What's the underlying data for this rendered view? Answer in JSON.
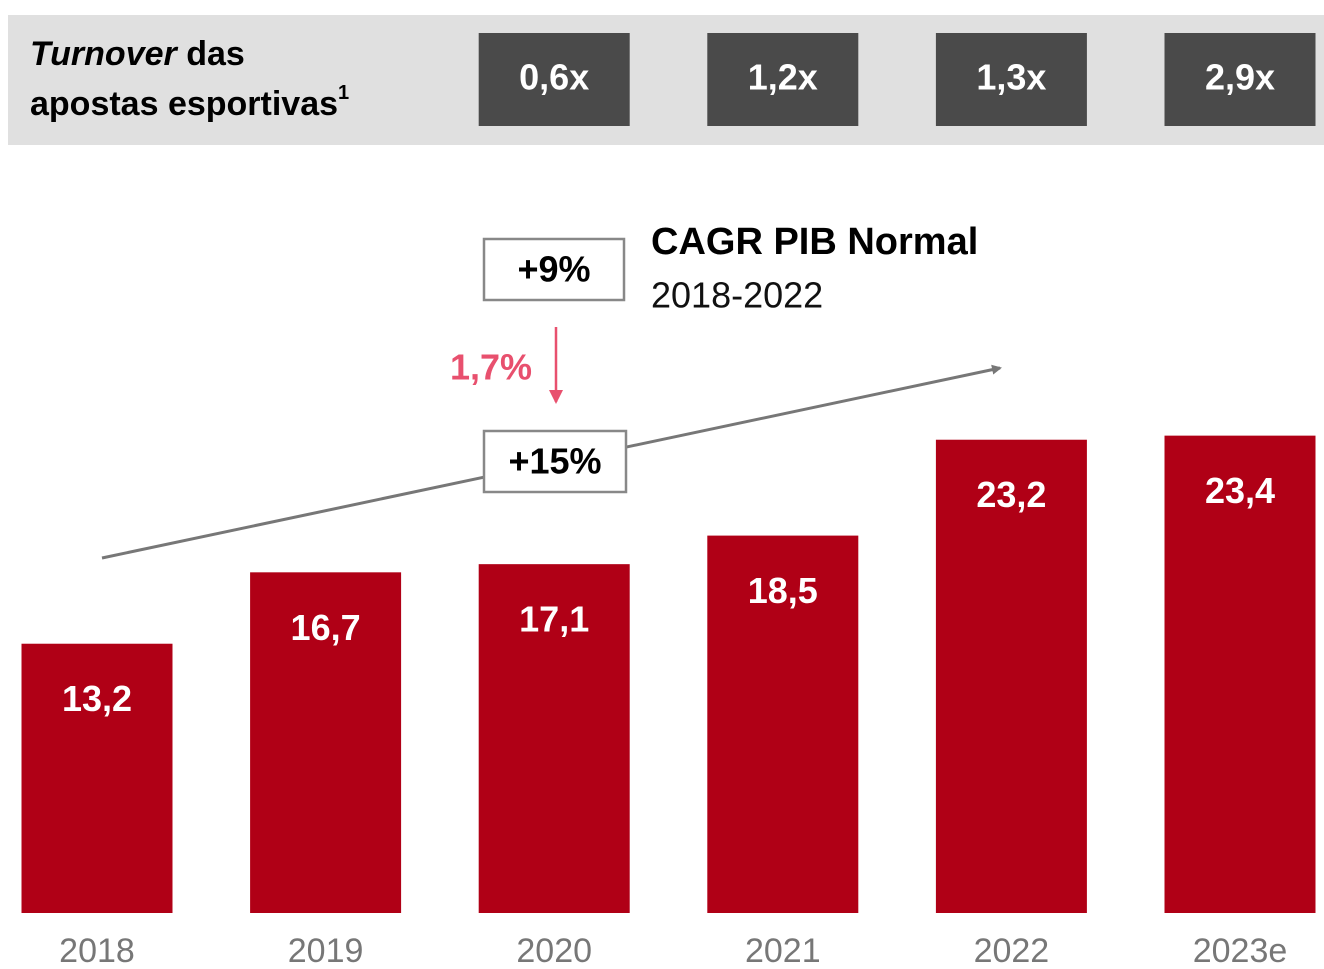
{
  "chart_data": {
    "type": "bar",
    "header": {
      "title_italic": "Turnover",
      "title_rest": " das apostas esportivas",
      "footnote": "1",
      "turnover_categories": [
        "2020",
        "2021",
        "2022",
        "2023e"
      ],
      "turnover_labels": [
        "0,6x",
        "1,2x",
        "1,3x",
        "2,9x"
      ]
    },
    "categories": [
      "2018",
      "2019",
      "2020",
      "2021",
      "2022",
      "2023e"
    ],
    "values": [
      13.2,
      16.7,
      17.1,
      18.5,
      23.2,
      23.4
    ],
    "value_labels": [
      "13,2",
      "16,7",
      "17,1",
      "18,5",
      "23,2",
      "23,4"
    ],
    "color": "#b00016",
    "ylim": [
      0,
      25
    ],
    "annotations": {
      "cagr_title": "CAGR PIB Normal",
      "cagr_period": "2018-2022",
      "cagr_gdp": "+9%",
      "cagr_bets": "+15%",
      "difference": "1,7%"
    }
  }
}
